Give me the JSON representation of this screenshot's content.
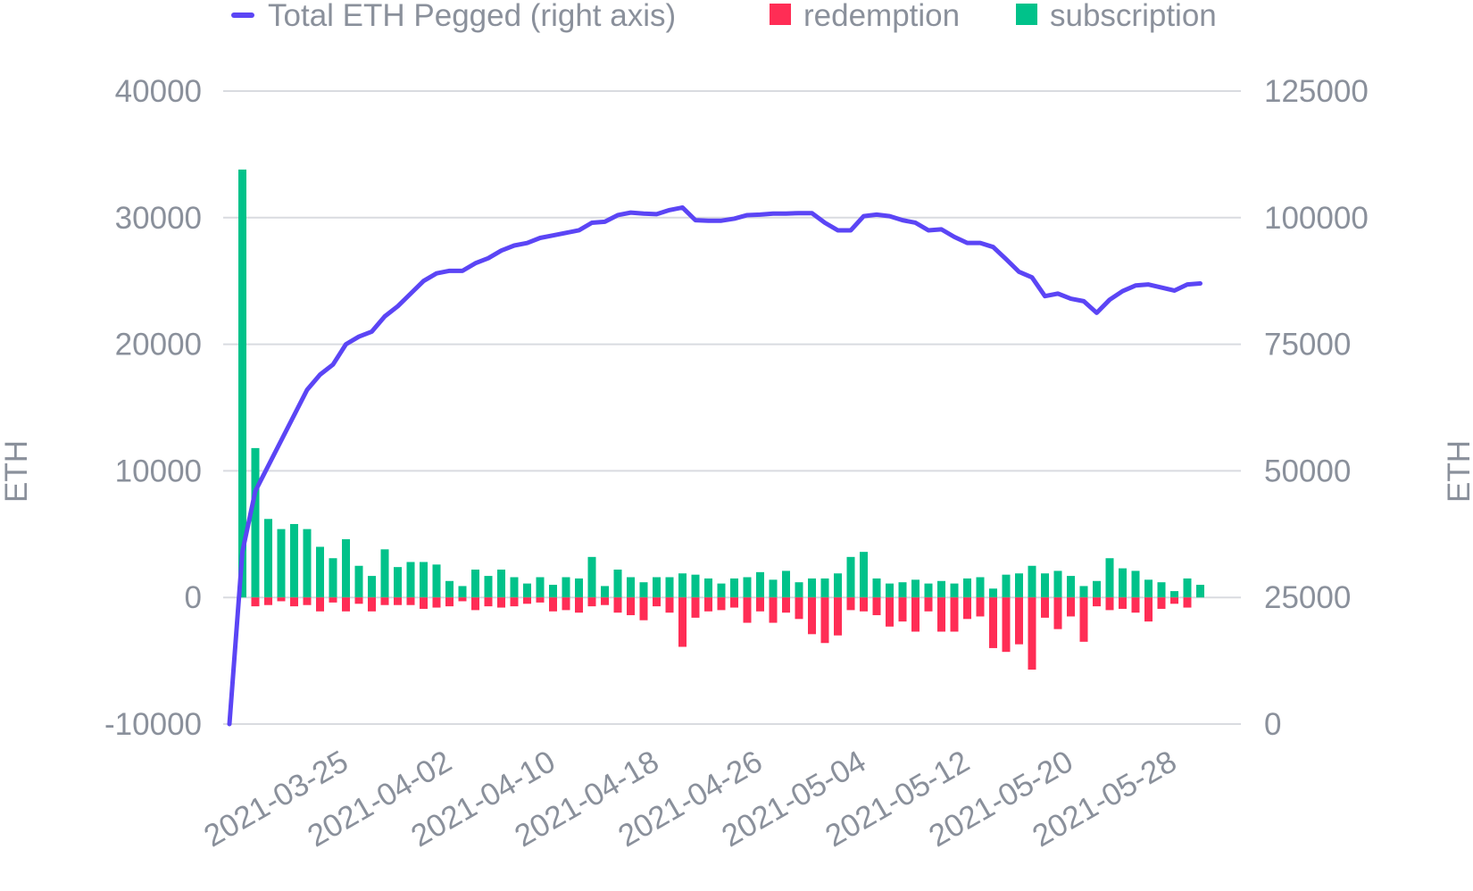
{
  "chart_data": {
    "type": "bar",
    "x_start": "2021-03-16",
    "x_tick_labels": [
      "2021-03-25",
      "2021-04-02",
      "2021-04-10",
      "2021-04-18",
      "2021-04-26",
      "2021-05-04",
      "2021-05-12",
      "2021-05-20",
      "2021-05-28"
    ],
    "y_left": {
      "label": "ETH",
      "lim": [
        -10000,
        40000
      ],
      "ticks": [
        "40000",
        "30000",
        "20000",
        "10000",
        "0",
        "-10000"
      ]
    },
    "y_right": {
      "label": "ETH",
      "lim": [
        0,
        125000
      ],
      "ticks": [
        "125000",
        "100000",
        "75000",
        "50000",
        "25000",
        "0"
      ]
    },
    "grid": true,
    "legend_position": "top",
    "series": [
      {
        "name": "Total ETH Pegged (right axis)",
        "kind": "line",
        "axis": "right",
        "color": "#5b45f5",
        "values": [
          0,
          34000,
          46000,
          51000,
          56000,
          61000,
          66000,
          69000,
          71000,
          75000,
          76500,
          77500,
          80500,
          82500,
          85000,
          87500,
          89000,
          89500,
          89500,
          91000,
          92000,
          93500,
          94500,
          95000,
          96000,
          96500,
          97000,
          97500,
          99000,
          99200,
          100500,
          101000,
          100800,
          100700,
          101500,
          102000,
          99500,
          99400,
          99400,
          99800,
          100500,
          100600,
          100800,
          100800,
          100900,
          100900,
          99000,
          97500,
          97500,
          100300,
          100600,
          100300,
          99500,
          99000,
          97500,
          97700,
          96200,
          95000,
          95000,
          94200,
          91800,
          89300,
          88200,
          84500,
          85000,
          84000,
          83500,
          81200,
          83800,
          85500,
          86600,
          86800,
          86200,
          85600,
          86800,
          87000
        ]
      },
      {
        "name": "redemption",
        "kind": "bar",
        "axis": "left",
        "color": "#ff2d55",
        "values": [
          0,
          -700,
          -600,
          -300,
          -700,
          -600,
          -1100,
          -400,
          -1100,
          -500,
          -1100,
          -600,
          -600,
          -600,
          -900,
          -800,
          -700,
          -300,
          -1000,
          -700,
          -800,
          -700,
          -500,
          -400,
          -1100,
          -1000,
          -1200,
          -700,
          -600,
          -1200,
          -1400,
          -1800,
          -700,
          -1200,
          -3900,
          -1600,
          -1100,
          -1000,
          -800,
          -2000,
          -1100,
          -2000,
          -1200,
          -1700,
          -2900,
          -3600,
          -3000,
          -1000,
          -1100,
          -1400,
          -2300,
          -1900,
          -2700,
          -1100,
          -2700,
          -2700,
          -1700,
          -1500,
          -4000,
          -4300,
          -3700,
          -5700,
          -1600,
          -2500,
          -1500,
          -3500,
          -700,
          -1000,
          -900,
          -1200,
          -1900,
          -900,
          -500,
          -800
        ],
        "offset": 1
      },
      {
        "name": "subscription",
        "kind": "bar",
        "axis": "left",
        "color": "#00c28a",
        "values": [
          33800,
          11800,
          6200,
          5400,
          5800,
          5400,
          4000,
          3100,
          4600,
          2500,
          1700,
          3800,
          2400,
          2800,
          2800,
          2600,
          1300,
          900,
          2200,
          1700,
          2200,
          1600,
          1100,
          1600,
          1000,
          1600,
          1500,
          3200,
          900,
          2200,
          1600,
          1200,
          1600,
          1600,
          1900,
          1800,
          1500,
          1100,
          1500,
          1600,
          2000,
          1400,
          2100,
          1200,
          1500,
          1500,
          1900,
          3200,
          3600,
          1500,
          1100,
          1200,
          1400,
          1100,
          1300,
          1100,
          1500,
          1600,
          700,
          1800,
          1900,
          2500,
          1900,
          2100,
          1700,
          900,
          1300,
          3100,
          2300,
          2100,
          1400,
          1200,
          500,
          1500,
          1000
        ],
        "offset": 1
      }
    ]
  }
}
